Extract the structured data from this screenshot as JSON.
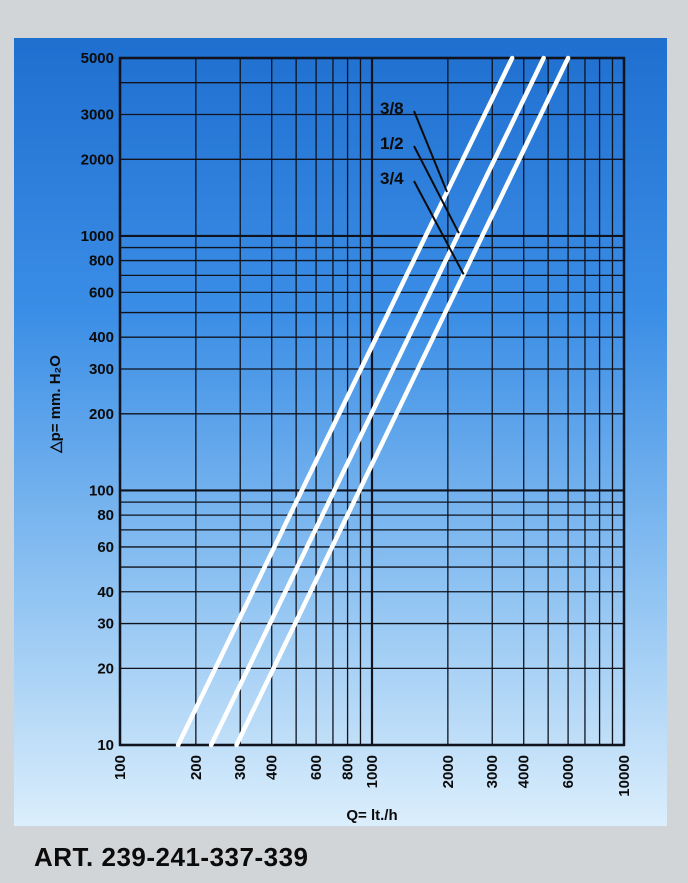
{
  "chart_data": {
    "type": "line",
    "x_scale": "log",
    "y_scale": "log",
    "xlabel": "Q= lt./h",
    "ylabel": "△p= mm. H₂O",
    "xlim": [
      100,
      10000
    ],
    "ylim": [
      10,
      5000
    ],
    "x_ticks": [
      "100",
      "200",
      "300",
      "400",
      "600",
      "800",
      "1000",
      "2000",
      "3000",
      "4000",
      "6000",
      "10000"
    ],
    "y_ticks": [
      "10",
      "20",
      "30",
      "40",
      "60",
      "80",
      "100",
      "200",
      "300",
      "400",
      "600",
      "800",
      "1000",
      "2000",
      "3000",
      "5000"
    ],
    "grid": true,
    "series": [
      {
        "name": "3/8",
        "x": [
          170,
          3600
        ],
        "y": [
          10,
          5000
        ]
      },
      {
        "name": "1/2",
        "x": [
          230,
          4800
        ],
        "y": [
          10,
          5000
        ]
      },
      {
        "name": "3/4",
        "x": [
          290,
          6000
        ],
        "y": [
          10,
          5000
        ]
      }
    ]
  },
  "footer": {
    "title": "ART. 239-241-337-339"
  },
  "colors": {
    "line": "#ffffff",
    "grid": "#10131c",
    "background_top": "#1f6fd0",
    "background_bottom": "#dbeefc"
  }
}
